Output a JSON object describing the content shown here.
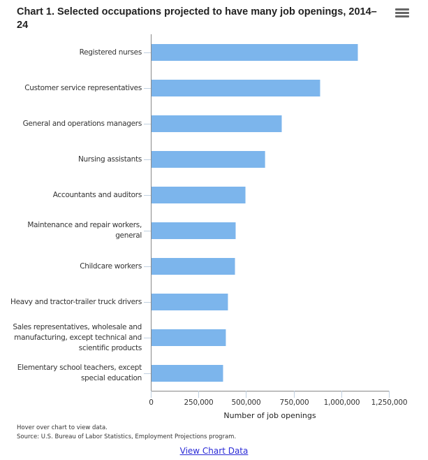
{
  "header": {
    "title": "Chart 1. Selected occupations projected to have many job openings, 2014–24",
    "menu_icon": "hamburger-menu-icon"
  },
  "chart_data": {
    "type": "bar",
    "orientation": "horizontal",
    "title": "Chart 1. Selected occupations projected to have many job openings, 2014–24",
    "xlabel": "Number of job openings",
    "ylabel": "",
    "categories": [
      "Registered nurses",
      "Customer service representatives",
      "General and operations managers",
      "Nursing assistants",
      "Accountants and auditors",
      "Maintenance and repair workers, general",
      "Childcare workers",
      "Heavy and tractor-trailer truck drivers",
      "Sales representatives, wholesale and manufacturing, except technical and scientific products",
      "Elementary school teachers, except special education"
    ],
    "values": [
      1085000,
      887000,
      685500,
      598000,
      495000,
      443500,
      440000,
      403000,
      392000,
      377500
    ],
    "xlim": [
      0,
      1250000
    ],
    "xticks": [
      0,
      250000,
      500000,
      750000,
      1000000,
      1250000
    ],
    "xtick_labels": [
      "0",
      "250,000",
      "500,000",
      "750,000",
      "1,000,000",
      "1,250,000"
    ],
    "grid": false,
    "legend": "none",
    "bar_color": "#7cb5ec"
  },
  "footer": {
    "hover_note": "Hover over chart to view data.",
    "source": "Source: U.S. Bureau of Labor Statistics, Employment Projections program.",
    "view_link": "View Chart Data"
  }
}
